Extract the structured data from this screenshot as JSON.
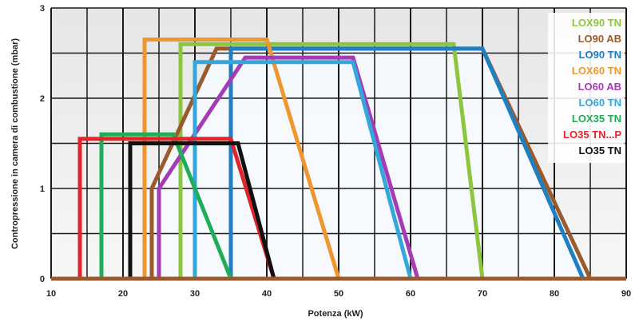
{
  "chart_data": {
    "type": "line",
    "title": "",
    "xlabel": "Potenza (kW)",
    "ylabel": "Contropressione in camera di combustione (mbar)",
    "xlim": [
      10,
      90
    ],
    "ylim": [
      0,
      3
    ],
    "x_ticks": [
      "10",
      "20",
      "30",
      "40",
      "50",
      "60",
      "70",
      "80",
      "90"
    ],
    "y_ticks": [
      "0",
      "1",
      "2",
      "3"
    ],
    "grid": true,
    "legend_position": "top-right",
    "series": [
      {
        "name": "LOX90 TN",
        "color": "#8cc63f",
        "points": [
          [
            28,
            0
          ],
          [
            28,
            2.6
          ],
          [
            66,
            2.6
          ],
          [
            70,
            0
          ]
        ]
      },
      {
        "name": "LO90 AB",
        "color": "#9b5a2e",
        "points": [
          [
            24,
            0
          ],
          [
            24,
            1
          ],
          [
            33,
            2.55
          ],
          [
            70,
            2.55
          ],
          [
            85,
            0
          ]
        ]
      },
      {
        "name": "LO90 TN",
        "color": "#1f7fc0",
        "points": [
          [
            35,
            0
          ],
          [
            35,
            2.55
          ],
          [
            70,
            2.55
          ],
          [
            84,
            0
          ]
        ]
      },
      {
        "name": "LOX60 TN",
        "color": "#f0962e",
        "points": [
          [
            23,
            0
          ],
          [
            23,
            2.65
          ],
          [
            40,
            2.65
          ],
          [
            50,
            0
          ]
        ]
      },
      {
        "name": "LO60 AB",
        "color": "#a43db5",
        "points": [
          [
            25,
            0
          ],
          [
            25,
            1
          ],
          [
            37,
            2.45
          ],
          [
            52,
            2.45
          ],
          [
            61,
            0
          ]
        ]
      },
      {
        "name": "LO60 TN",
        "color": "#33a7db",
        "points": [
          [
            30,
            0
          ],
          [
            30,
            2.4
          ],
          [
            52,
            2.4
          ],
          [
            60,
            0
          ]
        ]
      },
      {
        "name": "LOX35 TN",
        "color": "#1fae57",
        "points": [
          [
            17,
            0
          ],
          [
            17,
            1.6
          ],
          [
            27,
            1.6
          ],
          [
            35,
            0
          ]
        ]
      },
      {
        "name": "LO35 TN...P",
        "color": "#e0262b",
        "points": [
          [
            14,
            0
          ],
          [
            14,
            1.55
          ],
          [
            35,
            1.55
          ],
          [
            41,
            0
          ]
        ]
      },
      {
        "name": "LO35 TN",
        "color": "#111111",
        "points": [
          [
            21,
            0
          ],
          [
            21,
            1.5
          ],
          [
            36,
            1.5
          ],
          [
            41,
            0
          ]
        ]
      }
    ]
  }
}
